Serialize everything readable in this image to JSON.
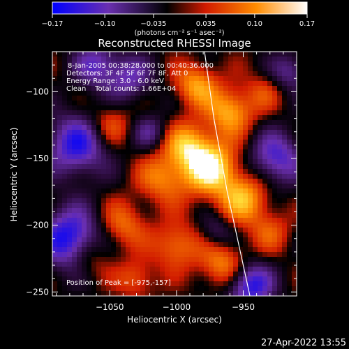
{
  "colorbar": {
    "ticks": [
      "-0.17",
      "-0.10",
      "-0.035",
      "0.035",
      "0.10",
      "0.17"
    ],
    "tick_values": [
      -0.17,
      -0.1,
      -0.035,
      0.035,
      0.1,
      0.17
    ],
    "range": [
      -0.17,
      0.17
    ],
    "unit_label": "(photons cm⁻² s⁻¹ asec⁻²)",
    "colors": [
      "#0000ff",
      "#6a2fb0",
      "#000000",
      "#d01a00",
      "#ff8c00",
      "#ffffff"
    ]
  },
  "chart_data": {
    "type": "heatmap",
    "title": "Reconstructed RHESSI Image",
    "xlabel": "Heliocentric X (arcsec)",
    "ylabel": "Heliocentric Y (arcsec)",
    "xlim": [
      -1093,
      -910
    ],
    "ylim": [
      -253,
      -70
    ],
    "xticks": [
      -1050,
      -1000,
      -950
    ],
    "xtick_labels": [
      "−1050",
      "−1000",
      "−950"
    ],
    "yticks": [
      -100,
      -150,
      -200,
      -250
    ],
    "ytick_labels": [
      "−100",
      "−150",
      "−200",
      "−250"
    ],
    "peak": {
      "x": -975,
      "y": -157
    },
    "blobs": [
      {
        "x": -975,
        "y": -157,
        "amp": 0.17,
        "s": 14
      },
      {
        "x": -992,
        "y": -140,
        "amp": 0.11,
        "s": 12
      },
      {
        "x": -960,
        "y": -115,
        "amp": 0.12,
        "s": 12
      },
      {
        "x": -950,
        "y": -180,
        "amp": 0.12,
        "s": 13
      },
      {
        "x": -985,
        "y": -95,
        "amp": 0.11,
        "s": 11
      },
      {
        "x": -1010,
        "y": -165,
        "amp": 0.09,
        "s": 13
      },
      {
        "x": -1000,
        "y": -215,
        "amp": 0.09,
        "s": 12
      },
      {
        "x": -965,
        "y": -230,
        "amp": 0.1,
        "s": 12
      },
      {
        "x": -1040,
        "y": -200,
        "amp": 0.08,
        "s": 12
      },
      {
        "x": -1050,
        "y": -125,
        "amp": 0.07,
        "s": 11
      },
      {
        "x": -1065,
        "y": -225,
        "amp": 0.06,
        "s": 11
      },
      {
        "x": -1030,
        "y": -240,
        "amp": 0.07,
        "s": 10
      },
      {
        "x": -930,
        "y": -205,
        "amp": 0.06,
        "s": 11
      },
      {
        "x": -935,
        "y": -100,
        "amp": 0.05,
        "s": 10
      },
      {
        "x": -1075,
        "y": -140,
        "amp": -0.14,
        "s": 16
      },
      {
        "x": -1080,
        "y": -210,
        "amp": -0.16,
        "s": 16
      },
      {
        "x": -945,
        "y": -245,
        "amp": -0.15,
        "s": 12
      },
      {
        "x": -925,
        "y": -150,
        "amp": -0.12,
        "s": 14
      },
      {
        "x": -1035,
        "y": -90,
        "amp": -0.09,
        "s": 12
      },
      {
        "x": -1020,
        "y": -130,
        "amp": -0.07,
        "s": 9
      },
      {
        "x": -970,
        "y": -205,
        "amp": -0.06,
        "s": 9
      },
      {
        "x": -1060,
        "y": -80,
        "amp": -0.1,
        "s": 12
      },
      {
        "x": -915,
        "y": -85,
        "amp": -0.08,
        "s": 10
      }
    ],
    "limb_arc": [
      [
        -979,
        -70
      ],
      [
        -972,
        -120
      ],
      [
        -962,
        -175
      ],
      [
        -950,
        -230
      ],
      [
        -945,
        -253
      ]
    ]
  },
  "annotations": {
    "time_range": "8-Jan-2005 00:38:28.000 to 00:40:36.000",
    "detectors": "Detectors: 3F 4F 5F 6F 7F 8F, Att 0",
    "energy": "Energy Range: 3.0 - 6.0 keV",
    "clean": "Clean    Total counts: 1.66E+04",
    "peak": "Position of Peak = [-975,-157]"
  },
  "footer": {
    "timestamp": "27-Apr-2022 13:55"
  }
}
